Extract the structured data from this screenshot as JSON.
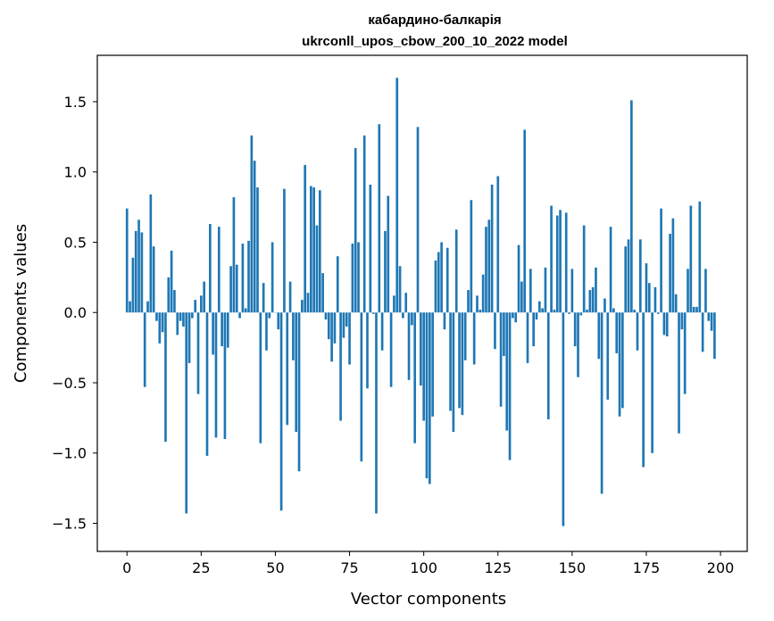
{
  "chart_data": {
    "type": "bar",
    "title": "кабардино-балкарія",
    "subtitle": "ukrconll_upos_cbow_200_10_2022 model",
    "xlabel": "Vector components",
    "ylabel": "Components values",
    "xlim": [
      -10,
      209
    ],
    "ylim": [
      -1.7,
      1.83
    ],
    "xticks": [
      0,
      25,
      50,
      75,
      100,
      125,
      150,
      175,
      200
    ],
    "yticks": [
      -1.5,
      -1.0,
      -0.5,
      0.0,
      0.5,
      1.0,
      1.5
    ],
    "ytick_labels": [
      "−1.5",
      "−1.0",
      "−0.5",
      "0.0",
      "0.5",
      "1.0",
      "1.5"
    ],
    "bar_color": "#1f77b4",
    "values": [
      0.74,
      0.08,
      0.39,
      0.58,
      0.66,
      0.57,
      -0.53,
      0.08,
      0.84,
      0.47,
      -0.06,
      -0.22,
      -0.14,
      -0.92,
      0.25,
      0.44,
      0.16,
      -0.16,
      -0.06,
      -0.1,
      -1.43,
      -0.36,
      -0.04,
      0.09,
      -0.58,
      0.12,
      0.22,
      -1.02,
      0.63,
      -0.3,
      -0.89,
      0.61,
      -0.24,
      -0.9,
      -0.25,
      0.33,
      0.82,
      0.34,
      -0.04,
      0.49,
      0.03,
      0.51,
      1.26,
      1.08,
      0.89,
      -0.93,
      0.21,
      -0.27,
      -0.04,
      0.5,
      0.0,
      -0.12,
      -1.41,
      0.88,
      -0.8,
      0.22,
      -0.34,
      -0.85,
      -1.13,
      0.09,
      1.05,
      0.14,
      0.9,
      0.89,
      0.62,
      0.87,
      0.28,
      -0.05,
      -0.19,
      -0.35,
      -0.22,
      0.4,
      -0.77,
      -0.18,
      -0.1,
      -0.37,
      0.49,
      1.17,
      0.5,
      -1.06,
      1.26,
      -0.54,
      0.91,
      -0.01,
      -1.43,
      1.34,
      -0.27,
      0.58,
      0.83,
      -0.53,
      0.12,
      1.67,
      0.33,
      -0.04,
      0.14,
      -0.48,
      -0.09,
      -0.93,
      1.32,
      -0.52,
      -0.77,
      -1.18,
      -1.22,
      -0.74,
      0.37,
      0.43,
      0.5,
      -0.12,
      0.46,
      -0.7,
      -0.85,
      0.59,
      -0.68,
      -0.73,
      -0.34,
      0.16,
      0.8,
      -0.37,
      0.12,
      0.02,
      0.27,
      0.61,
      0.66,
      0.91,
      -0.26,
      0.97,
      -0.67,
      -0.31,
      -0.84,
      -1.05,
      -0.04,
      -0.07,
      0.48,
      0.22,
      1.3,
      -0.36,
      0.31,
      -0.24,
      -0.05,
      0.08,
      0.03,
      0.32,
      -0.76,
      0.76,
      0.02,
      0.69,
      0.73,
      -1.52,
      0.71,
      -0.01,
      0.31,
      -0.24,
      -0.46,
      -0.02,
      0.62,
      0.02,
      0.16,
      0.18,
      0.32,
      -0.33,
      -1.29,
      0.1,
      -0.62,
      0.61,
      0.03,
      -0.29,
      -0.74,
      -0.68,
      0.47,
      0.52,
      1.51,
      0.02,
      -0.27,
      0.52,
      -1.1,
      0.35,
      0.21,
      -1.0,
      0.18,
      -0.01,
      0.74,
      -0.16,
      -0.17,
      0.56,
      0.67,
      0.13,
      -0.86,
      -0.12,
      -0.58,
      0.31,
      0.76,
      0.04,
      0.04,
      0.79,
      -0.28,
      0.31,
      -0.06,
      -0.13,
      -0.33
    ]
  }
}
